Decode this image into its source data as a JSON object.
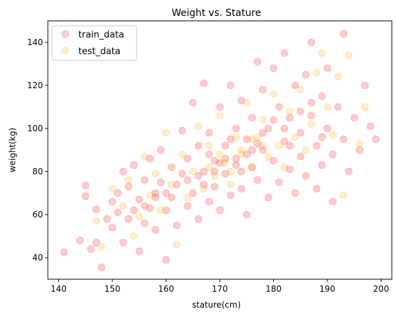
{
  "chart_data": {
    "type": "scatter",
    "title": "Weight vs. Stature",
    "xlabel": "stature(cm)",
    "ylabel": "weight(kg)",
    "xlim": [
      138,
      202
    ],
    "ylim": [
      30,
      150
    ],
    "xticks": [
      "140",
      "150",
      "160",
      "170",
      "180",
      "190",
      "200"
    ],
    "yticks": [
      "40",
      "60",
      "80",
      "100",
      "120",
      "140"
    ],
    "grid": false,
    "legend_position": "top-left",
    "series": [
      {
        "name": "train_data",
        "color": "#ff0000",
        "opacity": 0.2,
        "points": [
          [
            141,
            42.5
          ],
          [
            144,
            48
          ],
          [
            145,
            73.5
          ],
          [
            145,
            68.5
          ],
          [
            146,
            44
          ],
          [
            147,
            62.5
          ],
          [
            148,
            35.5
          ],
          [
            147,
            47
          ],
          [
            149,
            58
          ],
          [
            150,
            66
          ],
          [
            150,
            54
          ],
          [
            151,
            70
          ],
          [
            151,
            61
          ],
          [
            152,
            80
          ],
          [
            152,
            47
          ],
          [
            153,
            58
          ],
          [
            153,
            73
          ],
          [
            154,
            62
          ],
          [
            154,
            83
          ],
          [
            155,
            43
          ],
          [
            155,
            67
          ],
          [
            156,
            56
          ],
          [
            156,
            76
          ],
          [
            157,
            86
          ],
          [
            157,
            63
          ],
          [
            158,
            70
          ],
          [
            158,
            53
          ],
          [
            159,
            90
          ],
          [
            159,
            75
          ],
          [
            160,
            39
          ],
          [
            160,
            62
          ],
          [
            161,
            82
          ],
          [
            161,
            68
          ],
          [
            162,
            55
          ],
          [
            162,
            74
          ],
          [
            163,
            99
          ],
          [
            163,
            79
          ],
          [
            164,
            64
          ],
          [
            164,
            86
          ],
          [
            165,
            112
          ],
          [
            165,
            70
          ],
          [
            166,
            92
          ],
          [
            166,
            58
          ],
          [
            167,
            80
          ],
          [
            167,
            121
          ],
          [
            168,
            66
          ],
          [
            168,
            98
          ],
          [
            169,
            85
          ],
          [
            169,
            73
          ],
          [
            170,
            110
          ],
          [
            170,
            62
          ],
          [
            171,
            92
          ],
          [
            171,
            79
          ],
          [
            172,
            120
          ],
          [
            172,
            69
          ],
          [
            173,
            100
          ],
          [
            173,
            86
          ],
          [
            174,
            72
          ],
          [
            174,
            113
          ],
          [
            175,
            95
          ],
          [
            175,
            60
          ],
          [
            176,
            82
          ],
          [
            176,
            105
          ],
          [
            177,
            131
          ],
          [
            177,
            76
          ],
          [
            178,
            90
          ],
          [
            178,
            118
          ],
          [
            179,
            68
          ],
          [
            179,
            100
          ],
          [
            180,
            85
          ],
          [
            180,
            128
          ],
          [
            181,
            110
          ],
          [
            181,
            75
          ],
          [
            182,
            94
          ],
          [
            182,
            135
          ],
          [
            183,
            81
          ],
          [
            183,
            105
          ],
          [
            184,
            120
          ],
          [
            184,
            70
          ],
          [
            185,
            98
          ],
          [
            185,
            87
          ],
          [
            186,
            125
          ],
          [
            186,
            78
          ],
          [
            187,
            106
          ],
          [
            187,
            140
          ],
          [
            188,
            92
          ],
          [
            188,
            72
          ],
          [
            189,
            115
          ],
          [
            189,
            83
          ],
          [
            190,
            100
          ],
          [
            190,
            128
          ],
          [
            191,
            88
          ],
          [
            191,
            66
          ],
          [
            192,
            110
          ],
          [
            193,
            144
          ],
          [
            193,
            95
          ],
          [
            194,
            80
          ],
          [
            195,
            105
          ],
          [
            196,
            90
          ],
          [
            197,
            120
          ],
          [
            198,
            101
          ],
          [
            199,
            95
          ],
          [
            168,
            88
          ],
          [
            172,
            95
          ],
          [
            176,
            90
          ],
          [
            174,
            80
          ],
          [
            178,
            98
          ],
          [
            170,
            84
          ],
          [
            166,
            78
          ],
          [
            164,
            76
          ],
          [
            180,
            104
          ],
          [
            182,
            100
          ],
          [
            177,
            93
          ],
          [
            175,
            88
          ],
          [
            173,
            83
          ],
          [
            171,
            86
          ],
          [
            169,
            80
          ],
          [
            167,
            74
          ],
          [
            160,
            70
          ],
          [
            158,
            68
          ],
          [
            156,
            64
          ],
          [
            185,
            108
          ],
          [
            187,
            112
          ],
          [
            189,
            96
          ],
          [
            183,
            92
          ]
        ]
      },
      {
        "name": "test_data",
        "color": "#ffa500",
        "opacity": 0.2,
        "points": [
          [
            147,
            57
          ],
          [
            148,
            45
          ],
          [
            150,
            72
          ],
          [
            152,
            64
          ],
          [
            153,
            76
          ],
          [
            154,
            50
          ],
          [
            155,
            59
          ],
          [
            156,
            87
          ],
          [
            157,
            69
          ],
          [
            158,
            79
          ],
          [
            159,
            62
          ],
          [
            160,
            98
          ],
          [
            161,
            74
          ],
          [
            162,
            46
          ],
          [
            163,
            88
          ],
          [
            164,
            68
          ],
          [
            165,
            80
          ],
          [
            166,
            101
          ],
          [
            167,
            72
          ],
          [
            168,
            92
          ],
          [
            169,
            78
          ],
          [
            170,
            106
          ],
          [
            171,
            84
          ],
          [
            172,
            74
          ],
          [
            173,
            96
          ],
          [
            174,
            88
          ],
          [
            175,
            112
          ],
          [
            176,
            82
          ],
          [
            177,
            96
          ],
          [
            178,
            104
          ],
          [
            179,
            87
          ],
          [
            180,
            116
          ],
          [
            181,
            92
          ],
          [
            182,
            82
          ],
          [
            183,
            108
          ],
          [
            184,
            96
          ],
          [
            185,
            118
          ],
          [
            186,
            90
          ],
          [
            187,
            102
          ],
          [
            188,
            126
          ],
          [
            189,
            135
          ],
          [
            190,
            110
          ],
          [
            191,
            97
          ],
          [
            192,
            124
          ],
          [
            193,
            69
          ],
          [
            194,
            134
          ],
          [
            196,
            93
          ],
          [
            197,
            110
          ],
          [
            170,
            88
          ],
          [
            174,
            90
          ],
          [
            168,
            82
          ],
          [
            176,
            95
          ],
          [
            172,
            80
          ],
          [
            178,
            92
          ]
        ]
      }
    ]
  }
}
